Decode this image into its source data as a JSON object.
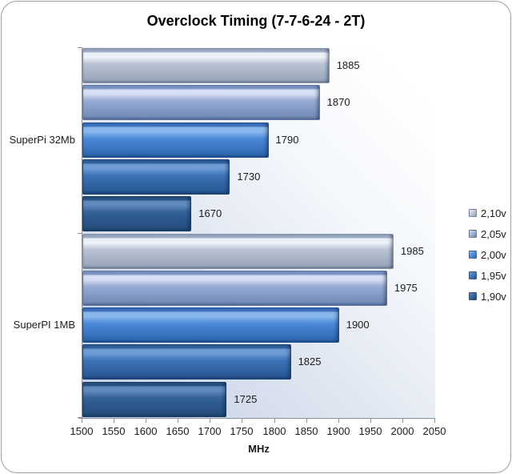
{
  "chart_data": {
    "type": "bar",
    "orientation": "horizontal",
    "title": "Overclock Timing (7-7-6-24 - 2T)",
    "xlabel": "MHz",
    "xlim": [
      1500,
      2050
    ],
    "xticks": [
      1500,
      1550,
      1600,
      1650,
      1700,
      1750,
      1800,
      1850,
      1900,
      1950,
      2000,
      2050
    ],
    "grid": false,
    "data_labels": true,
    "legend_position": "right",
    "categories": [
      "SuperPi 32Mb",
      "SuperPI 1MB"
    ],
    "series": [
      {
        "name": "2,10v",
        "values": [
          1885,
          1985
        ],
        "color": "#b9c3d4",
        "edge": "#9aa9c0",
        "highlight": "#eef2f8",
        "dark": "#96a2b8",
        "outline": "#8494ac"
      },
      {
        "name": "2,05v",
        "values": [
          1870,
          1975
        ],
        "color": "#97abd3",
        "edge": "#7b93c2",
        "highlight": "#d4dff2",
        "dark": "#6e86b5",
        "outline": "#6079ab"
      },
      {
        "name": "2,00v",
        "values": [
          1790,
          1900
        ],
        "color": "#4b8ad9",
        "edge": "#3a6fbd",
        "highlight": "#8ab8ec",
        "dark": "#2b63ab",
        "outline": "#1f5196"
      },
      {
        "name": "1,95v",
        "values": [
          1730,
          1825
        ],
        "color": "#3d74b8",
        "edge": "#2f5d9b",
        "highlight": "#6f9bd4",
        "dark": "#265390",
        "outline": "#1c4579"
      },
      {
        "name": "1,90v",
        "values": [
          1670,
          1725
        ],
        "color": "#336199",
        "edge": "#28517f",
        "highlight": "#5f8abc",
        "dark": "#214b79",
        "outline": "#183c66"
      }
    ]
  },
  "colors": {
    "frame_border": "#9aa0a6",
    "axis": "#8b9199",
    "text": "#1c1c1c",
    "title_text": "#000000",
    "plot_bg_gradient": [
      "#c2cde3",
      "#dde4f0",
      "#f4f7fb",
      "#ffffff"
    ]
  }
}
